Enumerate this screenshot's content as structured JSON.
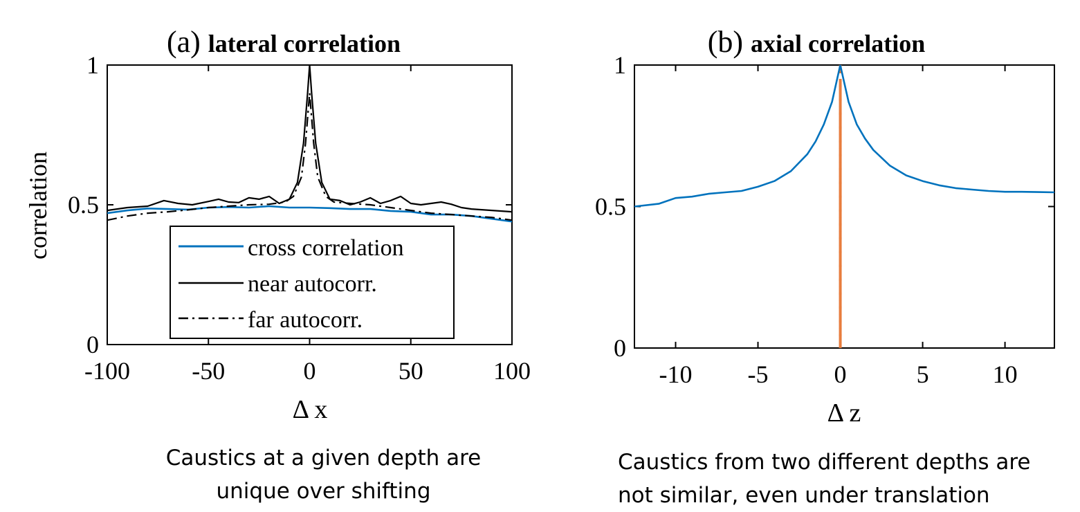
{
  "chart_data": [
    {
      "type": "line",
      "panel_label": "(a)",
      "title": "lateral correlation",
      "xlabel": "Δ x",
      "ylabel": "correlation",
      "xlim": [
        -100,
        100
      ],
      "ylim": [
        0,
        1
      ],
      "x_ticks": [
        "-100",
        "-50",
        "0",
        "50",
        "100"
      ],
      "y_ticks": [
        "0",
        "0.5",
        "1"
      ],
      "legend_position": "bottom-center",
      "series": [
        {
          "name": "cross correlation",
          "color": "#0072BD",
          "style": "solid",
          "x": [
            -100,
            -90,
            -80,
            -70,
            -60,
            -50,
            -40,
            -30,
            -20,
            -10,
            0,
            10,
            20,
            30,
            40,
            50,
            60,
            70,
            80,
            90,
            100
          ],
          "y": [
            0.47,
            0.48,
            0.487,
            0.485,
            0.483,
            0.49,
            0.492,
            0.49,
            0.495,
            0.49,
            0.49,
            0.488,
            0.485,
            0.485,
            0.478,
            0.475,
            0.465,
            0.465,
            0.46,
            0.45,
            0.44
          ]
        },
        {
          "name": "near autocorr.",
          "color": "#000000",
          "style": "solid",
          "x": [
            -100,
            -90,
            -80,
            -72,
            -65,
            -58,
            -50,
            -45,
            -40,
            -35,
            -30,
            -25,
            -20,
            -15,
            -10,
            -6,
            -3,
            -1,
            0,
            1,
            3,
            6,
            10,
            15,
            20,
            25,
            30,
            35,
            40,
            45,
            50,
            55,
            60,
            65,
            70,
            75,
            80,
            90,
            100
          ],
          "y": [
            0.48,
            0.49,
            0.495,
            0.515,
            0.505,
            0.5,
            0.512,
            0.52,
            0.51,
            0.508,
            0.525,
            0.52,
            0.53,
            0.505,
            0.52,
            0.58,
            0.72,
            0.9,
            1.0,
            0.9,
            0.72,
            0.58,
            0.52,
            0.515,
            0.5,
            0.51,
            0.525,
            0.505,
            0.515,
            0.53,
            0.505,
            0.5,
            0.505,
            0.51,
            0.502,
            0.49,
            0.485,
            0.48,
            0.475
          ]
        },
        {
          "name": "far autocorr.",
          "color": "#000000",
          "style": "dashdot",
          "x": [
            -100,
            -90,
            -80,
            -70,
            -60,
            -50,
            -40,
            -30,
            -20,
            -12,
            -8,
            -4,
            -2,
            0,
            2,
            4,
            8,
            12,
            20,
            30,
            40,
            50,
            60,
            70,
            80,
            90,
            100
          ],
          "y": [
            0.445,
            0.46,
            0.47,
            0.475,
            0.482,
            0.49,
            0.495,
            0.5,
            0.502,
            0.51,
            0.53,
            0.6,
            0.72,
            0.9,
            0.72,
            0.6,
            0.53,
            0.51,
            0.505,
            0.5,
            0.49,
            0.48,
            0.47,
            0.465,
            0.46,
            0.455,
            0.445
          ]
        }
      ]
    },
    {
      "type": "line",
      "panel_label": "(b)",
      "title": "axial correlation",
      "xlabel": "Δ z",
      "ylabel": "",
      "xlim": [
        -12.5,
        13
      ],
      "ylim": [
        0,
        1
      ],
      "x_ticks": [
        "-10",
        "-5",
        "0",
        "5",
        "10"
      ],
      "y_ticks": [
        "0",
        "0.5",
        "1"
      ],
      "series": [
        {
          "color": "#0072BD",
          "style": "solid",
          "x": [
            -12.5,
            -11,
            -10,
            -9,
            -8,
            -7,
            -6,
            -5,
            -4,
            -3,
            -2,
            -1.5,
            -1,
            -0.5,
            0,
            0.5,
            1,
            1.5,
            2,
            3,
            4,
            5,
            6,
            7,
            8,
            9,
            10,
            11,
            12,
            13
          ],
          "y": [
            0.5,
            0.51,
            0.53,
            0.535,
            0.545,
            0.55,
            0.555,
            0.57,
            0.59,
            0.625,
            0.685,
            0.73,
            0.79,
            0.87,
            1.0,
            0.87,
            0.79,
            0.74,
            0.7,
            0.645,
            0.61,
            0.59,
            0.575,
            0.565,
            0.56,
            0.555,
            0.552,
            0.552,
            0.551,
            0.55
          ]
        }
      ],
      "reference_line": {
        "x": 0,
        "color": "#E87D3E",
        "style": "dashed"
      }
    }
  ],
  "captions": {
    "a": [
      "Caustics at a given depth are",
      "unique over shifting"
    ],
    "b": [
      "Caustics from two different depths are",
      "not similar, even under translation"
    ]
  }
}
